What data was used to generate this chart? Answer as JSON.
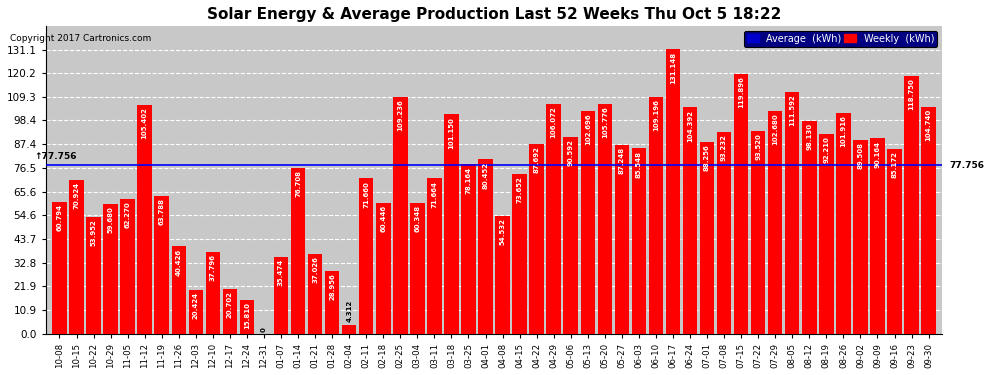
{
  "title": "Solar Energy & Average Production Last 52 Weeks Thu Oct 5 18:22",
  "copyright": "Copyright 2017 Cartronics.com",
  "average_label": "77.756",
  "average_value": 77.756,
  "bar_color": "#FF0000",
  "average_line_color": "#0000FF",
  "background_color": "#FFFFFF",
  "plot_bg_color": "#C8C8C8",
  "grid_color": "#FFFFFF",
  "yticks": [
    0.0,
    10.9,
    21.9,
    32.8,
    43.7,
    54.6,
    65.6,
    76.5,
    87.4,
    98.4,
    109.3,
    120.2,
    131.1
  ],
  "legend_avg_color": "#0000CD",
  "legend_weekly_color": "#FF0000",
  "categories": [
    "10-08",
    "10-15",
    "10-22",
    "10-29",
    "11-05",
    "11-12",
    "11-19",
    "11-26",
    "12-03",
    "12-10",
    "12-17",
    "12-24",
    "12-31",
    "01-07",
    "01-14",
    "01-21",
    "01-28",
    "02-04",
    "02-11",
    "02-18",
    "02-25",
    "03-04",
    "03-11",
    "03-18",
    "03-25",
    "04-01",
    "04-08",
    "04-15",
    "04-22",
    "04-29",
    "05-06",
    "05-13",
    "05-20",
    "05-27",
    "06-03",
    "06-10",
    "06-17",
    "06-24",
    "07-01",
    "07-08",
    "07-15",
    "07-22",
    "07-29",
    "08-05",
    "08-12",
    "08-19",
    "08-26",
    "09-02",
    "09-09",
    "09-16",
    "09-23",
    "09-30"
  ],
  "values": [
    60.794,
    70.924,
    53.952,
    59.68,
    62.27,
    105.402,
    63.788,
    40.426,
    20.424,
    37.796,
    20.702,
    15.81,
    0.0,
    35.474,
    76.708,
    37.026,
    28.956,
    4.312,
    71.66,
    60.446,
    109.236,
    60.348,
    71.664,
    101.15,
    78.164,
    80.452,
    54.532,
    73.652,
    87.692,
    106.072,
    90.592,
    102.696,
    105.776,
    87.248,
    85.548,
    109.196,
    131.148,
    104.392,
    88.256,
    93.232,
    119.896,
    93.52,
    102.68,
    111.592,
    98.13,
    92.21,
    101.916,
    89.508,
    90.164,
    85.172,
    118.75,
    104.74
  ],
  "bar_labels": [
    "60.794",
    "70.924",
    "53.952",
    "59.680",
    "62.270",
    "105.402",
    "63.788",
    "40.426",
    "20.424",
    "37.796",
    "20.702",
    "15.810",
    "0",
    "35.474",
    "76.708",
    "37.026",
    "28.956",
    "4.312",
    "71.660",
    "60.446",
    "109.236",
    "60.348",
    "71.664",
    "101.150",
    "78.164",
    "80.452",
    "54.532",
    "73.652",
    "87.692",
    "106.072",
    "90.592",
    "102.696",
    "105.776",
    "87.248",
    "85.548",
    "109.196",
    "131.148",
    "104.392",
    "88.256",
    "93.232",
    "119.896",
    "93.520",
    "102.680",
    "111.592",
    "98.130",
    "92.210",
    "101.916",
    "89.508",
    "90.164",
    "85.172",
    "118.750",
    "104.740"
  ],
  "ylim": [
    0,
    142
  ],
  "figsize": [
    9.9,
    3.75
  ],
  "dpi": 100
}
